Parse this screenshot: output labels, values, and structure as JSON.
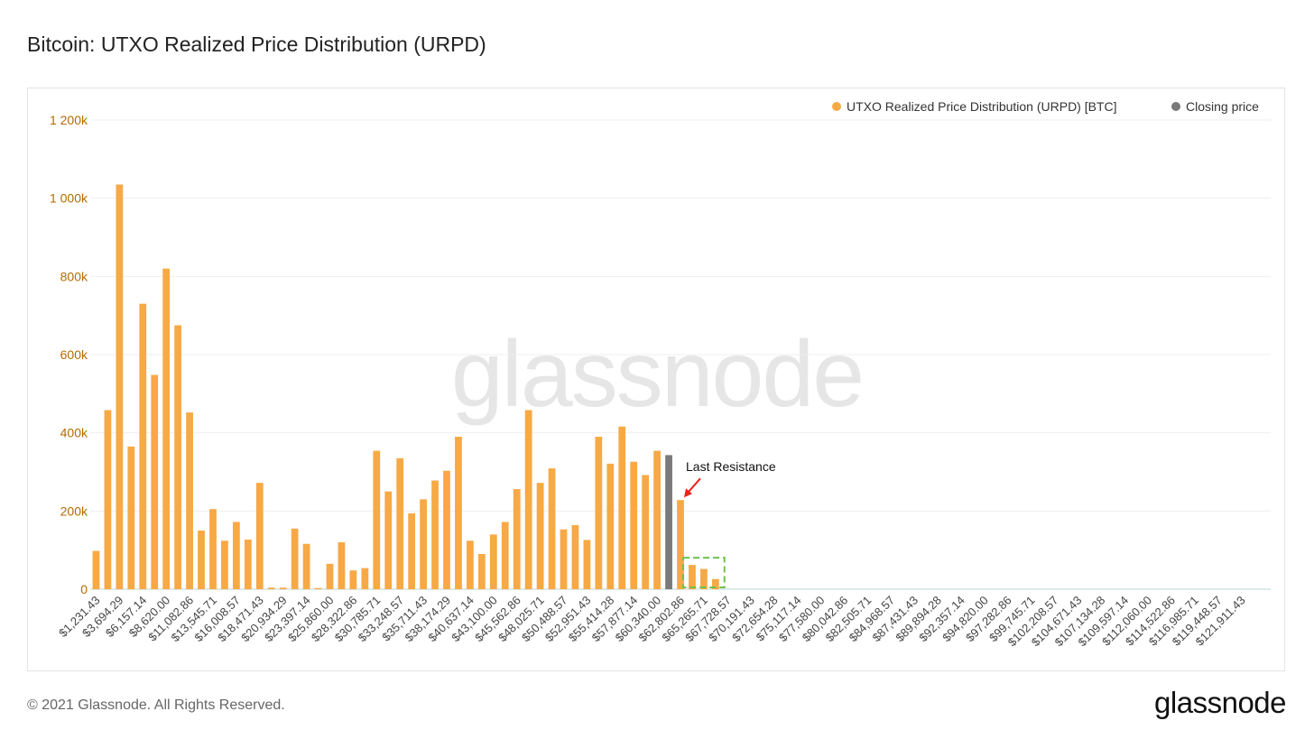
{
  "title": "Bitcoin: UTXO Realized Price Distribution (URPD)",
  "footer": {
    "copyright": "© 2021 Glassnode. All Rights Reserved.",
    "logo": "glassnode"
  },
  "watermark": "glassnode",
  "colors": {
    "bar": "#f7a945",
    "closing": "#7a7a7a",
    "axis_text": "#b36b00",
    "tick_text": "#444444",
    "highlight_box": "#6cc24a",
    "arrow": "#e8251c"
  },
  "legend": [
    {
      "label": "UTXO Realized Price Distribution (URPD) [BTC]",
      "color": "#f7a945"
    },
    {
      "label": "Closing price",
      "color": "#7a7a7a"
    }
  ],
  "annotation": {
    "text": "Last Resistance"
  },
  "chart_data": {
    "type": "bar",
    "ylim": [
      0,
      1200000
    ],
    "yticks": [
      0,
      200000,
      400000,
      600000,
      800000,
      1000000,
      1200000
    ],
    "ytick_labels": [
      "0",
      "200k",
      "400k",
      "600k",
      "800k",
      "1 000k",
      "1 200k"
    ],
    "bin_count": 101,
    "xtick_labels": [
      "$1,231.43",
      "$3,694.29",
      "$6,157.14",
      "$8,620.00",
      "$11,082.86",
      "$13,545.71",
      "$16,008.57",
      "$18,471.43",
      "$20,934.29",
      "$23,397.14",
      "$25,860.00",
      "$28,322.86",
      "$30,785.71",
      "$33,248.57",
      "$35,711.43",
      "$38,174.29",
      "$40,637.14",
      "$43,100.00",
      "$45,562.86",
      "$48,025.71",
      "$50,488.57",
      "$52,951.43",
      "$55,414.28",
      "$57,877.14",
      "$60,340.00",
      "$62,802.86",
      "$65,265.71",
      "$67,728.57",
      "$70,191.43",
      "$72,654.28",
      "$75,117.14",
      "$77,580.00",
      "$80,042.86",
      "$82,505.71",
      "$84,968.57",
      "$87,431.43",
      "$89,894.28",
      "$92,357.14",
      "$94,820.00",
      "$97,282.86",
      "$99,745.71",
      "$102,208.57",
      "$104,671.43",
      "$107,134.28",
      "$109,597.14",
      "$112,060.00",
      "$114,522.86",
      "$116,985.71",
      "$119,448.57",
      "$121,911.43"
    ],
    "values": [
      98000,
      458000,
      1035000,
      365000,
      730000,
      548000,
      820000,
      675000,
      452000,
      150000,
      205000,
      124000,
      172000,
      127000,
      272000,
      4000,
      4000,
      155000,
      116000,
      3000,
      65000,
      120000,
      48000,
      54000,
      354000,
      250000,
      335000,
      194000,
      230000,
      278000,
      303000,
      390000,
      124000,
      90000,
      140000,
      172000,
      256000,
      458000,
      272000,
      309000,
      153000,
      164000,
      126000,
      390000,
      321000,
      416000,
      326000,
      292000,
      354000,
      343000,
      228000,
      62000,
      52000,
      26000,
      0,
      0,
      0,
      0,
      0,
      0,
      0,
      0,
      0,
      0,
      0,
      0,
      0,
      0,
      0,
      0,
      0,
      0,
      0,
      0,
      0,
      0,
      0,
      0,
      0,
      0,
      0,
      0,
      0,
      0,
      0,
      0,
      0,
      0,
      0,
      0,
      0,
      0,
      0,
      0,
      0,
      0,
      0,
      0,
      0,
      0,
      0
    ],
    "closing_index": 49,
    "annotation_index": 50,
    "highlight_range": [
      51,
      53
    ]
  }
}
